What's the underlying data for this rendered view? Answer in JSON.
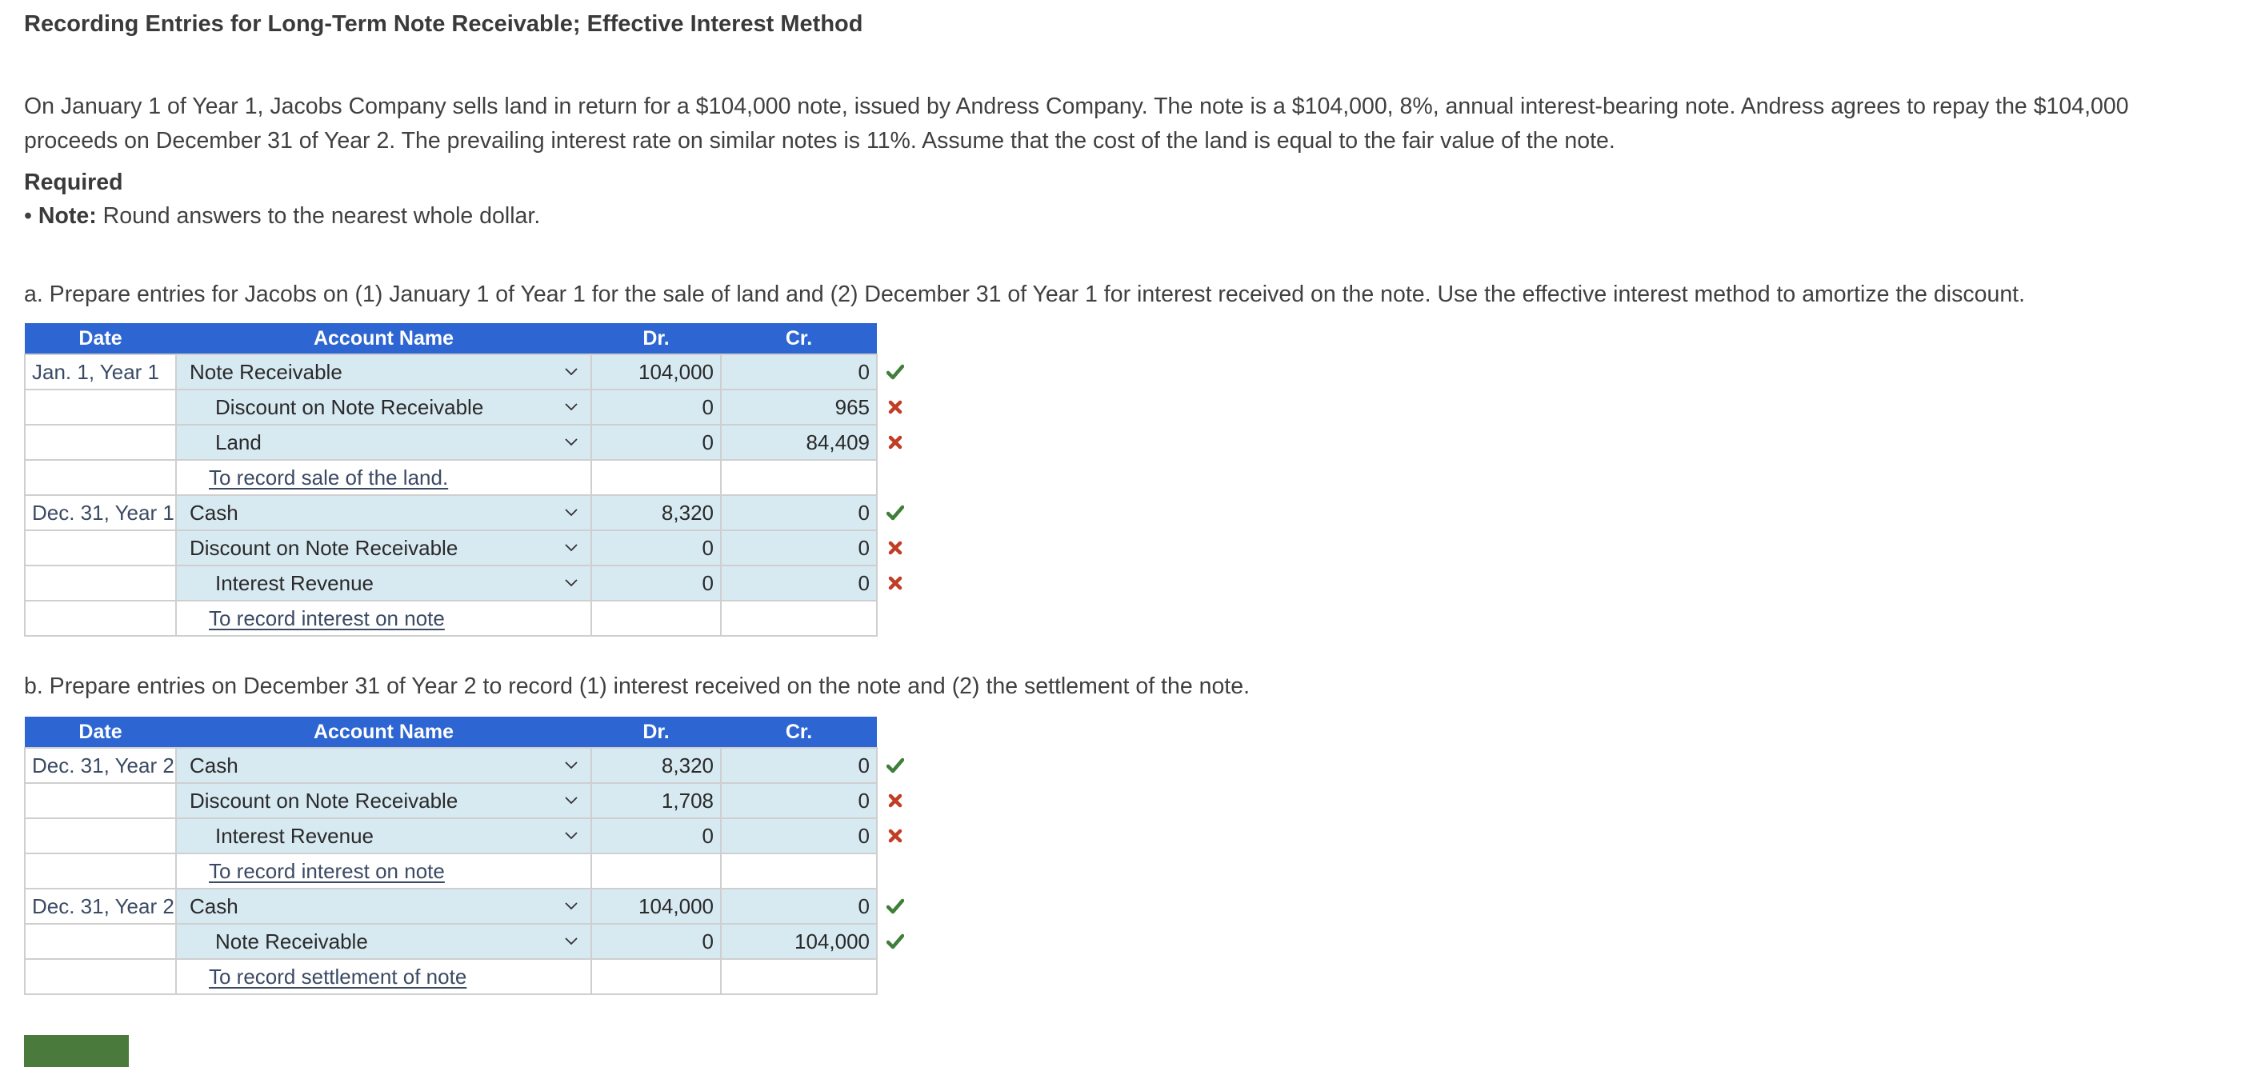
{
  "page": {
    "title": "Recording Entries for Long-Term Note Receivable; Effective Interest Method",
    "problem_text": "On January 1 of Year 1, Jacobs Company sells land in return for a $104,000 note, issued by Andress Company. The note is a $104,000, 8%, annual interest-bearing note. Andress agrees to repay the $104,000 proceeds on December 31 of Year 2. The prevailing interest rate on similar notes is 11%. Assume that the cost of the land is equal to the fair value of the note.",
    "required_label": "Required",
    "note_bullet": "•",
    "note_label": "Note:",
    "note_text": " Round answers to the nearest whole dollar."
  },
  "colors": {
    "header_blue": "#2d65d2",
    "input_bg": "#d7e9f1",
    "border": "#cfcfcf",
    "correct_green": "#3f7f3a",
    "incorrect_red": "#c13d25",
    "button_green": "#4a7a3c"
  },
  "columns": {
    "date": "Date",
    "account": "Account Name",
    "dr": "Dr.",
    "cr": "Cr."
  },
  "part_a": {
    "prompt": "a. Prepare entries for Jacobs on (1) January 1 of Year 1 for the sale of land and (2) December 31 of Year 1 for interest received on the note. Use the effective interest method to amortize the discount.",
    "rows": [
      {
        "date": "Jan. 1, Year 1",
        "account": "Note Receivable",
        "indent": false,
        "dr": "104,000",
        "cr": "0",
        "status": "correct"
      },
      {
        "date": "",
        "account": "Discount on Note Receivable",
        "indent": true,
        "dr": "0",
        "cr": "965",
        "status": "incorrect"
      },
      {
        "date": "",
        "account": "Land",
        "indent": true,
        "dr": "0",
        "cr": "84,409",
        "status": "incorrect"
      },
      {
        "date": "",
        "memo": "To record sale of the land."
      },
      {
        "date": "Dec. 31, Year 1",
        "account": "Cash",
        "indent": false,
        "dr": "8,320",
        "cr": "0",
        "status": "correct"
      },
      {
        "date": "",
        "account": "Discount on Note Receivable",
        "indent": false,
        "dr": "0",
        "cr": "0",
        "status": "incorrect"
      },
      {
        "date": "",
        "account": "Interest Revenue",
        "indent": true,
        "dr": "0",
        "cr": "0",
        "status": "incorrect"
      },
      {
        "date": "",
        "memo": "To record interest on note"
      }
    ]
  },
  "part_b": {
    "prompt": "b. Prepare entries on December 31 of Year 2 to record (1) interest received on the note and (2) the settlement of the note.",
    "rows": [
      {
        "date": "Dec. 31, Year 2",
        "account": "Cash",
        "indent": false,
        "dr": "8,320",
        "cr": "0",
        "status": "correct"
      },
      {
        "date": "",
        "account": "Discount on Note Receivable",
        "indent": false,
        "dr": "1,708",
        "cr": "0",
        "status": "incorrect"
      },
      {
        "date": "",
        "account": "Interest Revenue",
        "indent": true,
        "dr": "0",
        "cr": "0",
        "status": "incorrect"
      },
      {
        "date": "",
        "memo": "To record interest on note"
      },
      {
        "date": "Dec. 31, Year 2",
        "account": "Cash",
        "indent": false,
        "dr": "104,000",
        "cr": "0",
        "status": "correct"
      },
      {
        "date": "",
        "account": "Note Receivable",
        "indent": true,
        "dr": "0",
        "cr": "104,000",
        "status": "correct"
      },
      {
        "date": "",
        "memo": "To record settlement of note"
      }
    ]
  },
  "icons": {
    "dropdown": "chevron-down-icon",
    "correct": "checkmark-icon",
    "incorrect": "x-mark-icon"
  }
}
